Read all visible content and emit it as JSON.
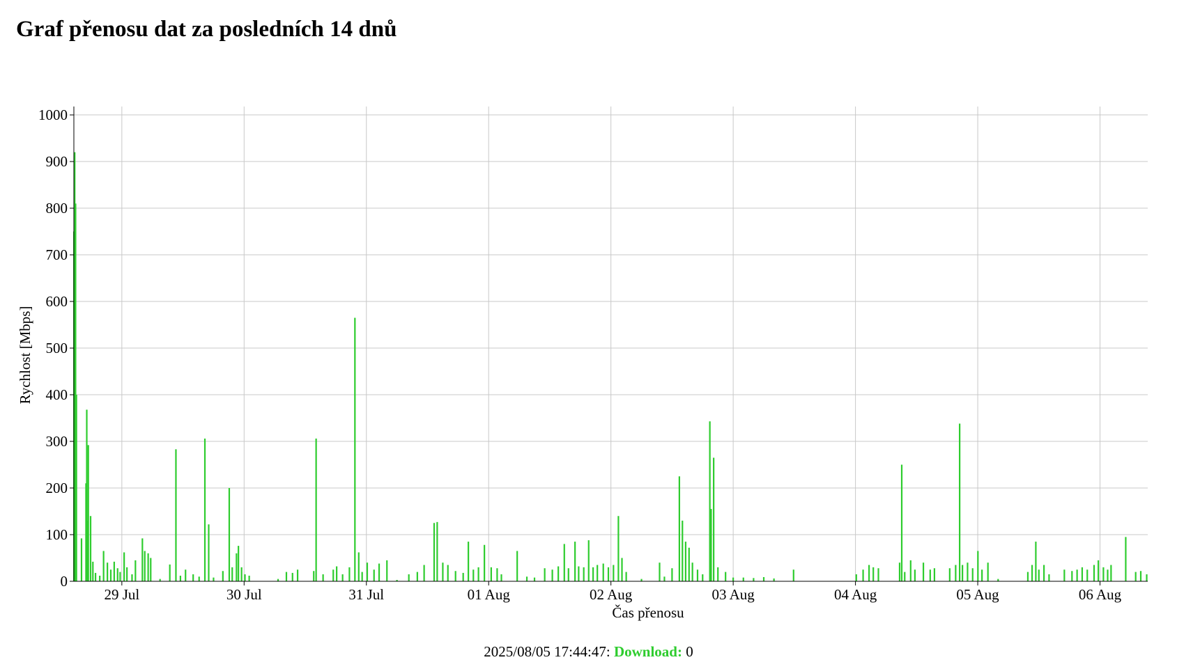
{
  "chart_data": {
    "type": "area",
    "title": "Graf přenosu dat za posledních 14 dnů",
    "x_label": "Čas přenosu",
    "y_label": "Rychlost [Mbps]",
    "xlim": [
      "2025-07-28T14:35",
      "2025-08-06T09:22"
    ],
    "ylim": [
      0,
      1018
    ],
    "yticks": [
      0,
      100,
      200,
      300,
      400,
      500,
      600,
      700,
      800,
      900,
      1000
    ],
    "xticks": [
      {
        "value": "2025-07-29T00:00",
        "label": "29 Jul"
      },
      {
        "value": "2025-07-30T00:00",
        "label": "30 Jul"
      },
      {
        "value": "2025-07-31T00:00",
        "label": "31 Jul"
      },
      {
        "value": "2025-08-01T00:00",
        "label": "01 Aug"
      },
      {
        "value": "2025-08-02T00:00",
        "label": "02 Aug"
      },
      {
        "value": "2025-08-03T00:00",
        "label": "03 Aug"
      },
      {
        "value": "2025-08-04T00:00",
        "label": "04 Aug"
      },
      {
        "value": "2025-08-05T00:00",
        "label": "05 Aug"
      },
      {
        "value": "2025-08-06T00:00",
        "label": "06 Aug"
      }
    ],
    "grid": true,
    "x": [
      "2025-07-28T14:36",
      "2025-07-28T14:45",
      "2025-07-28T14:55",
      "2025-07-28T15:05",
      "2025-07-28T16:05",
      "2025-07-28T16:58",
      "2025-07-28T17:07",
      "2025-07-28T17:16",
      "2025-07-28T17:25",
      "2025-07-28T17:52",
      "2025-07-28T18:19",
      "2025-07-28T18:50",
      "2025-07-28T19:40",
      "2025-07-28T20:25",
      "2025-07-28T21:10",
      "2025-07-28T21:50",
      "2025-07-28T22:30",
      "2025-07-28T23:10",
      "2025-07-28T23:40",
      "2025-07-29T00:27",
      "2025-07-29T01:00",
      "2025-07-29T02:00",
      "2025-07-29T02:40",
      "2025-07-29T04:02",
      "2025-07-29T04:30",
      "2025-07-29T05:10",
      "2025-07-29T05:40",
      "2025-07-29T07:30",
      "2025-07-29T09:25",
      "2025-07-29T10:37",
      "2025-07-29T11:30",
      "2025-07-29T12:30",
      "2025-07-29T14:00",
      "2025-07-29T15:10",
      "2025-07-29T16:18",
      "2025-07-29T17:03",
      "2025-07-29T18:00",
      "2025-07-29T19:50",
      "2025-07-29T21:05",
      "2025-07-29T21:40",
      "2025-07-29T22:30",
      "2025-07-29T22:53",
      "2025-07-29T23:30",
      "2025-07-30T00:10",
      "2025-07-30T01:00",
      "2025-07-30T06:40",
      "2025-07-30T08:18",
      "2025-07-30T09:30",
      "2025-07-30T10:30",
      "2025-07-30T13:40",
      "2025-07-30T14:08",
      "2025-07-30T15:30",
      "2025-07-30T17:30",
      "2025-07-30T18:10",
      "2025-07-30T19:20",
      "2025-07-30T20:40",
      "2025-07-30T21:45",
      "2025-07-30T22:30",
      "2025-07-30T23:10",
      "2025-07-31T00:10",
      "2025-07-31T01:30",
      "2025-07-31T02:30",
      "2025-07-31T04:02",
      "2025-07-31T06:00",
      "2025-07-31T08:20",
      "2025-07-31T10:00",
      "2025-07-31T11:20",
      "2025-07-31T13:18",
      "2025-07-31T13:54",
      "2025-07-31T15:00",
      "2025-07-31T16:00",
      "2025-07-31T17:30",
      "2025-07-31T19:00",
      "2025-07-31T20:01",
      "2025-07-31T21:00",
      "2025-07-31T22:00",
      "2025-07-31T23:10",
      "2025-08-01T00:30",
      "2025-08-01T01:40",
      "2025-08-01T02:30",
      "2025-08-01T05:36",
      "2025-08-01T07:30",
      "2025-08-01T09:00",
      "2025-08-01T11:00",
      "2025-08-01T12:30",
      "2025-08-01T13:40",
      "2025-08-01T14:51",
      "2025-08-01T15:40",
      "2025-08-01T16:57",
      "2025-08-01T17:40",
      "2025-08-01T18:40",
      "2025-08-01T19:38",
      "2025-08-01T20:30",
      "2025-08-01T21:20",
      "2025-08-01T22:30",
      "2025-08-01T23:30",
      "2025-08-02T00:30",
      "2025-08-02T01:28",
      "2025-08-02T02:10",
      "2025-08-02T03:00",
      "2025-08-02T06:00",
      "2025-08-02T09:33",
      "2025-08-02T10:30",
      "2025-08-02T12:00",
      "2025-08-02T13:26",
      "2025-08-02T14:02",
      "2025-08-02T14:40",
      "2025-08-02T15:20",
      "2025-08-02T16:00",
      "2025-08-02T17:00",
      "2025-08-02T18:00",
      "2025-08-02T19:25",
      "2025-08-02T19:40",
      "2025-08-02T20:10",
      "2025-08-02T21:00",
      "2025-08-02T22:30",
      "2025-08-03T00:00",
      "2025-08-03T02:00",
      "2025-08-03T04:00",
      "2025-08-03T06:00",
      "2025-08-03T08:00",
      "2025-08-03T11:51",
      "2025-08-04T00:10",
      "2025-08-04T01:30",
      "2025-08-04T02:40",
      "2025-08-04T03:30",
      "2025-08-04T04:30",
      "2025-08-04T08:40",
      "2025-08-04T09:05",
      "2025-08-04T09:40",
      "2025-08-04T10:50",
      "2025-08-04T11:40",
      "2025-08-04T13:20",
      "2025-08-04T14:40",
      "2025-08-04T15:30",
      "2025-08-04T18:30",
      "2025-08-04T19:40",
      "2025-08-04T20:27",
      "2025-08-04T21:00",
      "2025-08-04T22:00",
      "2025-08-04T23:00",
      "2025-08-05T00:02",
      "2025-08-05T00:50",
      "2025-08-05T02:00",
      "2025-08-05T04:00",
      "2025-08-05T09:50",
      "2025-08-05T10:40",
      "2025-08-05T11:24",
      "2025-08-05T12:00",
      "2025-08-05T13:00",
      "2025-08-05T14:00",
      "2025-08-05T17:00",
      "2025-08-05T18:30",
      "2025-08-05T19:30",
      "2025-08-05T20:30",
      "2025-08-05T21:30",
      "2025-08-05T22:50",
      "2025-08-05T23:40",
      "2025-08-06T00:40",
      "2025-08-06T01:30",
      "2025-08-06T02:10",
      "2025-08-06T05:03",
      "2025-08-06T07:00",
      "2025-08-06T08:00",
      "2025-08-06T09:10"
    ],
    "series": [
      {
        "name": "Download",
        "color": "#2ecc2e",
        "values": [
          750,
          920,
          810,
          400,
          92,
          210,
          368,
          130,
          292,
          140,
          42,
          18,
          12,
          65,
          40,
          25,
          42,
          28,
          20,
          62,
          30,
          15,
          45,
          92,
          65,
          60,
          50,
          5,
          36,
          283,
          12,
          25,
          15,
          10,
          306,
          122,
          8,
          22,
          200,
          30,
          60,
          76,
          30,
          15,
          12,
          5,
          20,
          18,
          25,
          22,
          306,
          15,
          25,
          32,
          15,
          30,
          565,
          62,
          20,
          40,
          25,
          38,
          45,
          3,
          15,
          20,
          35,
          125,
          127,
          40,
          35,
          22,
          18,
          85,
          25,
          30,
          78,
          30,
          28,
          15,
          65,
          10,
          8,
          28,
          25,
          32,
          80,
          28,
          85,
          32,
          30,
          88,
          30,
          35,
          38,
          30,
          35,
          140,
          50,
          20,
          5,
          40,
          10,
          28,
          225,
          130,
          85,
          72,
          40,
          25,
          15,
          343,
          155,
          265,
          30,
          20,
          8,
          8,
          7,
          9,
          6,
          25,
          15,
          25,
          35,
          30,
          28,
          40,
          250,
          20,
          45,
          25,
          40,
          25,
          28,
          28,
          35,
          338,
          35,
          40,
          28,
          65,
          25,
          40,
          5,
          20,
          35,
          85,
          25,
          35,
          15,
          25,
          22,
          25,
          30,
          25,
          35,
          45,
          30,
          25,
          35,
          95,
          20,
          22,
          15
        ]
      }
    ],
    "footer_time": "2025/08/05 17:44:47",
    "current_value": 0
  }
}
